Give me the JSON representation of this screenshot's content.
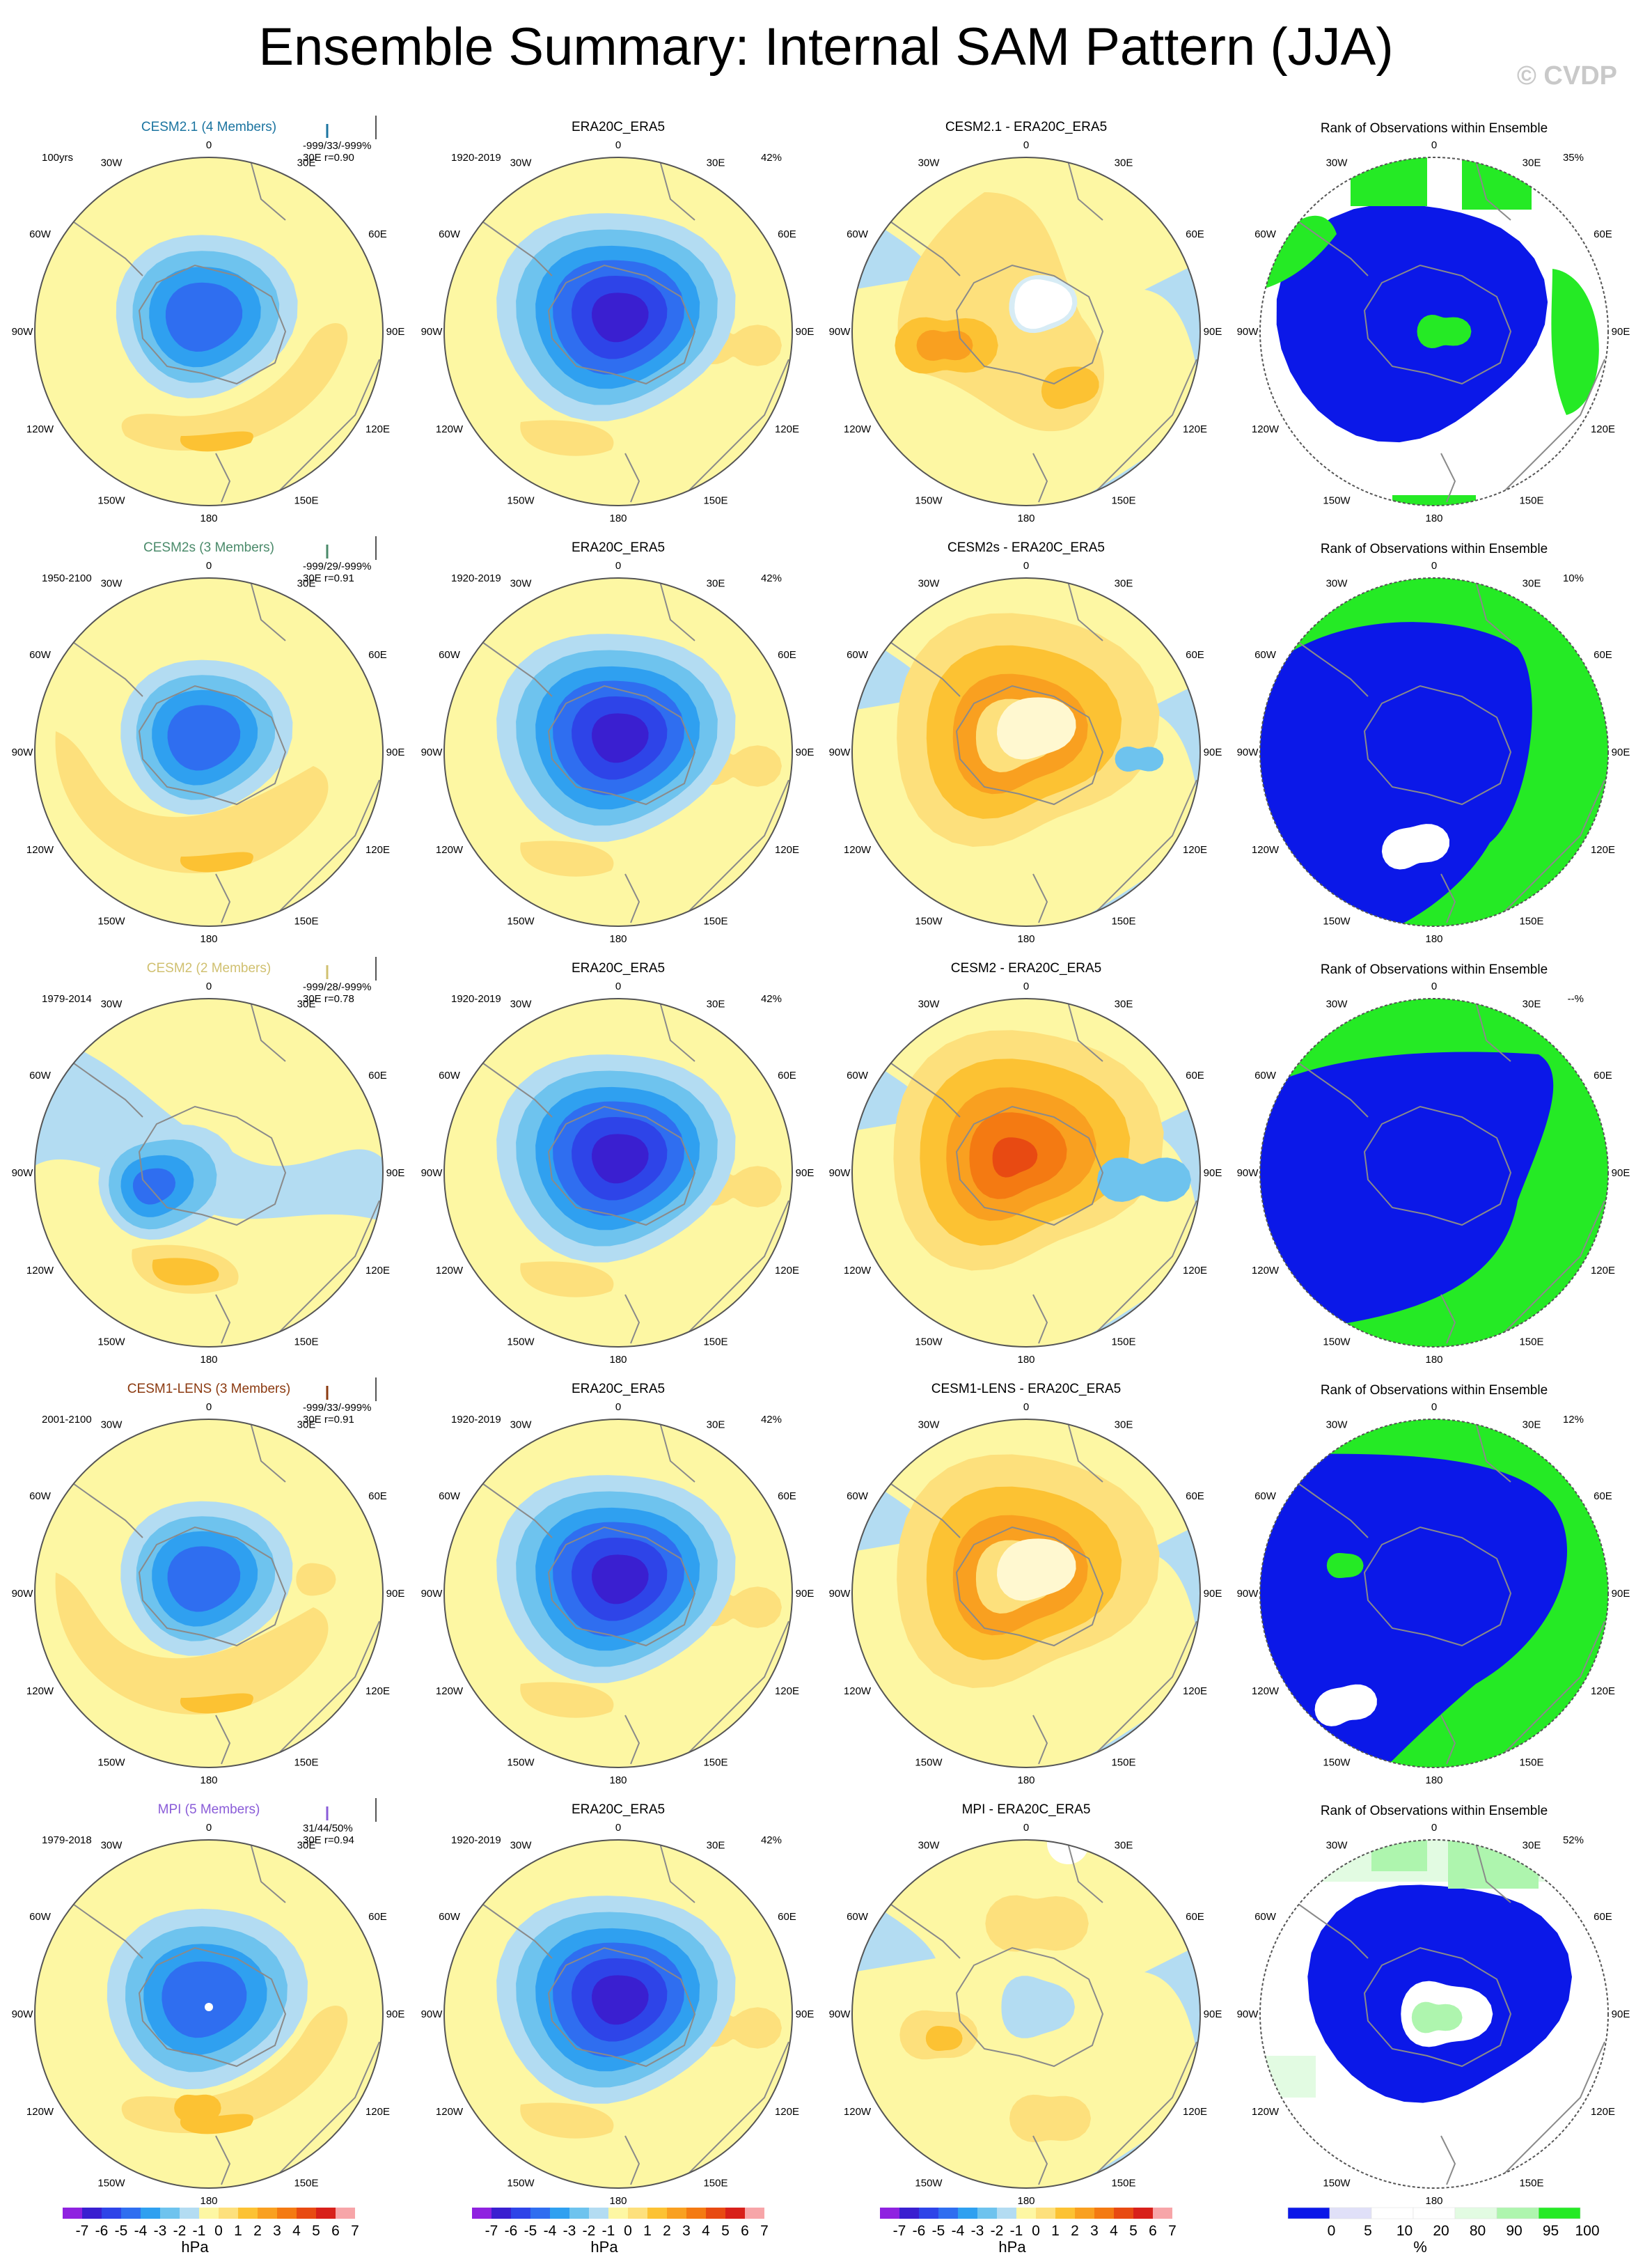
{
  "title": "Ensemble Summary: Internal SAM Pattern (JJA)",
  "watermark": "© CVDP",
  "lon_labels": [
    "0",
    "30E",
    "60E",
    "90E",
    "120E",
    "150E",
    "180",
    "150W",
    "120W",
    "90W",
    "60W",
    "30W"
  ],
  "colors": {
    "anom": [
      "#8f22e0",
      "#3a1fd0",
      "#2e44e8",
      "#2f6ef0",
      "#2fa0f0",
      "#6ec3ee",
      "#b3dcf2",
      "#fdf7a3",
      "#fde07c",
      "#fcc233",
      "#f9a020",
      "#f47a12",
      "#e84a12",
      "#d8201a",
      "#f7a5a8"
    ],
    "rank": [
      "#0b18e8",
      "#e0e0f8",
      "#ffffff",
      "#ffffff",
      "#e2fbe2",
      "#aef5ae",
      "#25ea25"
    ],
    "coast": "#8a8a8a",
    "member_colors": [
      "#1b74a0",
      "#4a8a6a",
      "#d0c070",
      "#8b3a10",
      "#8a5cd8"
    ]
  },
  "colorbars": [
    {
      "labels": [
        "-7",
        "-6",
        "-5",
        "-4",
        "-3",
        "-2",
        "-1",
        "0",
        "1",
        "2",
        "3",
        "4",
        "5",
        "6",
        "7"
      ],
      "unit": "hPa"
    },
    {
      "labels": [
        "-7",
        "-6",
        "-5",
        "-4",
        "-3",
        "-2",
        "-1",
        "0",
        "1",
        "2",
        "3",
        "4",
        "5",
        "6",
        "7"
      ],
      "unit": "hPa"
    },
    {
      "labels": [
        "-7",
        "-6",
        "-5",
        "-4",
        "-3",
        "-2",
        "-1",
        "0",
        "1",
        "2",
        "3",
        "4",
        "5",
        "6",
        "7"
      ],
      "unit": "hPa"
    },
    {
      "labels": [
        "0",
        "5",
        "10",
        "20",
        "80",
        "90",
        "95",
        "100"
      ],
      "unit": "%"
    }
  ],
  "rows": [
    {
      "model": {
        "title": "CESM2.1 (4 Members)",
        "period": "100yrs",
        "stats": "-999/33/-999%",
        "corr": "30E r=0.90"
      },
      "obs": {
        "title": "ERA20C_ERA5",
        "period": "1920-2019",
        "pct": "42%"
      },
      "diff": {
        "title": "CESM2.1 - ERA20C_ERA5"
      },
      "rank": {
        "title": "Rank of Observations within Ensemble",
        "pct": "35%"
      }
    },
    {
      "model": {
        "title": "CESM2s (3 Members)",
        "period": "1950-2100",
        "stats": "-999/29/-999%",
        "corr": "30E r=0.91"
      },
      "obs": {
        "title": "ERA20C_ERA5",
        "period": "1920-2019",
        "pct": "42%"
      },
      "diff": {
        "title": "CESM2s - ERA20C_ERA5"
      },
      "rank": {
        "title": "Rank of Observations within Ensemble",
        "pct": "10%"
      }
    },
    {
      "model": {
        "title": "CESM2 (2 Members)",
        "period": "1979-2014",
        "stats": "-999/28/-999%",
        "corr": "30E r=0.78"
      },
      "obs": {
        "title": "ERA20C_ERA5",
        "period": "1920-2019",
        "pct": "42%"
      },
      "diff": {
        "title": "CESM2 - ERA20C_ERA5"
      },
      "rank": {
        "title": "Rank of Observations within Ensemble",
        "pct": "--%"
      }
    },
    {
      "model": {
        "title": "CESM1-LENS (3 Members)",
        "period": "2001-2100",
        "stats": "-999/33/-999%",
        "corr": "30E r=0.91"
      },
      "obs": {
        "title": "ERA20C_ERA5",
        "period": "1920-2019",
        "pct": "42%"
      },
      "diff": {
        "title": "CESM1-LENS - ERA20C_ERA5"
      },
      "rank": {
        "title": "Rank of Observations within Ensemble",
        "pct": "12%"
      }
    },
    {
      "model": {
        "title": "MPI (5 Members)",
        "period": "1979-2018",
        "stats": "31/44/50%",
        "corr": "30E r=0.94"
      },
      "obs": {
        "title": "ERA20C_ERA5",
        "period": "1920-2019",
        "pct": "42%"
      },
      "diff": {
        "title": "MPI - ERA20C_ERA5"
      },
      "rank": {
        "title": "Rank of Observations within Ensemble",
        "pct": "52%"
      }
    }
  ],
  "chart_data": {
    "type": "heatmap",
    "projection": "south-polar stereographic",
    "variable": "sea level pressure anomaly regressed on SAM index",
    "season": "JJA",
    "anomaly_levels": [
      -7,
      -6,
      -5,
      -4,
      -3,
      -2,
      -1,
      0,
      1,
      2,
      3,
      4,
      5,
      6,
      7
    ],
    "rank_levels": [
      0,
      5,
      10,
      20,
      80,
      90,
      95,
      100
    ]
  }
}
